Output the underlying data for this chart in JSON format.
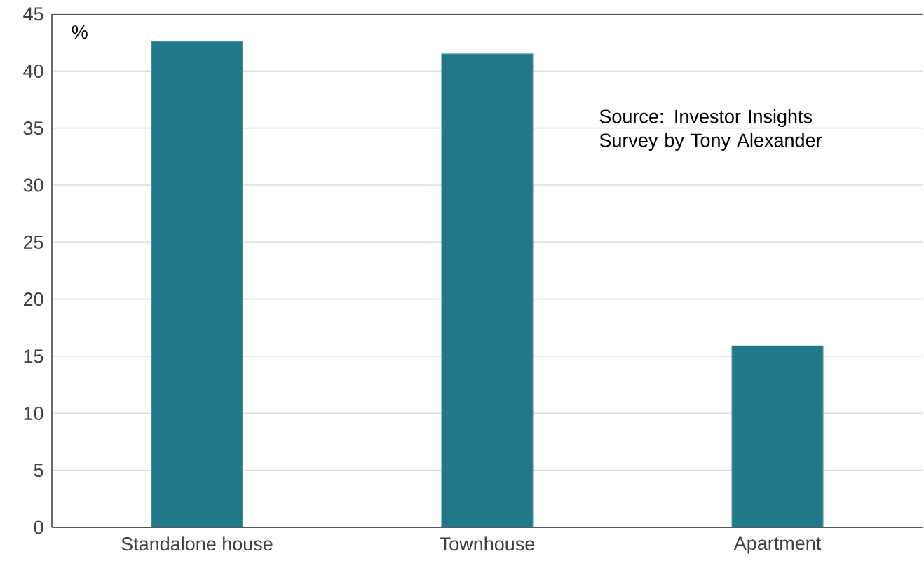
{
  "chart_data": {
    "type": "bar",
    "ylabel": "%",
    "categories": [
      "Standalone house",
      "Townhouse",
      "Apartment"
    ],
    "values": [
      42.6,
      41.5,
      15.9
    ],
    "color": "#217889",
    "ylim": [
      0,
      45
    ],
    "yticks": [
      0,
      5,
      10,
      15,
      20,
      25,
      30,
      35,
      40,
      45
    ],
    "grid": "y",
    "annotations": [
      "Source: Investor Insights Survey by Tony Alexander"
    ]
  }
}
